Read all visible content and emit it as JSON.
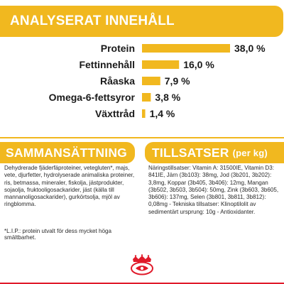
{
  "analysis": {
    "title": "ANALYSERAT INNEHÅLL"
  },
  "chart_data": {
    "type": "bar",
    "orientation": "horizontal",
    "categories": [
      "Protein",
      "Fettinnehåll",
      "Råaska",
      "Omega-6-fettsyror",
      "Växttråd"
    ],
    "values": [
      38.0,
      16.0,
      7.9,
      3.8,
      1.4
    ],
    "value_labels": [
      "38,0 %",
      "16,0 %",
      "7,9 %",
      "3,8 %",
      "1,4 %"
    ],
    "unit": "%",
    "bar_color": "#f1b81f",
    "grid": false,
    "legend": "none",
    "xlim": [
      0,
      38.0
    ]
  },
  "composition": {
    "title": "SAMMANSÄTTNING",
    "text": "Dehydrerade fjäderfäproteiner, vetegluten*, majs, vete, djurfetter, hydrolyserade animaliska proteiner, ris, betmassa, mineraler, fiskolja, jästprodukter, sojaolja, fruktooligosackarider, jäst (källa till mannanoligosackarider), gurkörtsolja, mjöl av ringblomma.",
    "note": "*L.I.P.: protein utvalt för dess mycket höga smältbarhet."
  },
  "additives": {
    "title": "TILLSATSER",
    "unit_label": "(per kg)",
    "text": "Näringstillsatser: Vitamin A: 31500IE, Vitamin D3: 841IE, Järn (3b103): 38mg, Jod (3b201, 3b202): 3,8mg, Koppar (3b405, 3b406): 12mg, Mangan (3b502, 3b503, 3b504): 50mg, Zink (3b603, 3b605, 3b606): 137mg, Selen (3b801, 3b811, 3b812): 0,08mg - Tekniska tillsatser: Klinoptilolit av sedimentärt ursprung: 10g - Antioxidanter."
  },
  "brand": {
    "logo_icon": "royal-canin-crown-logo-icon",
    "accent_color": "#f1b81f",
    "brand_red": "#e01a2a"
  }
}
